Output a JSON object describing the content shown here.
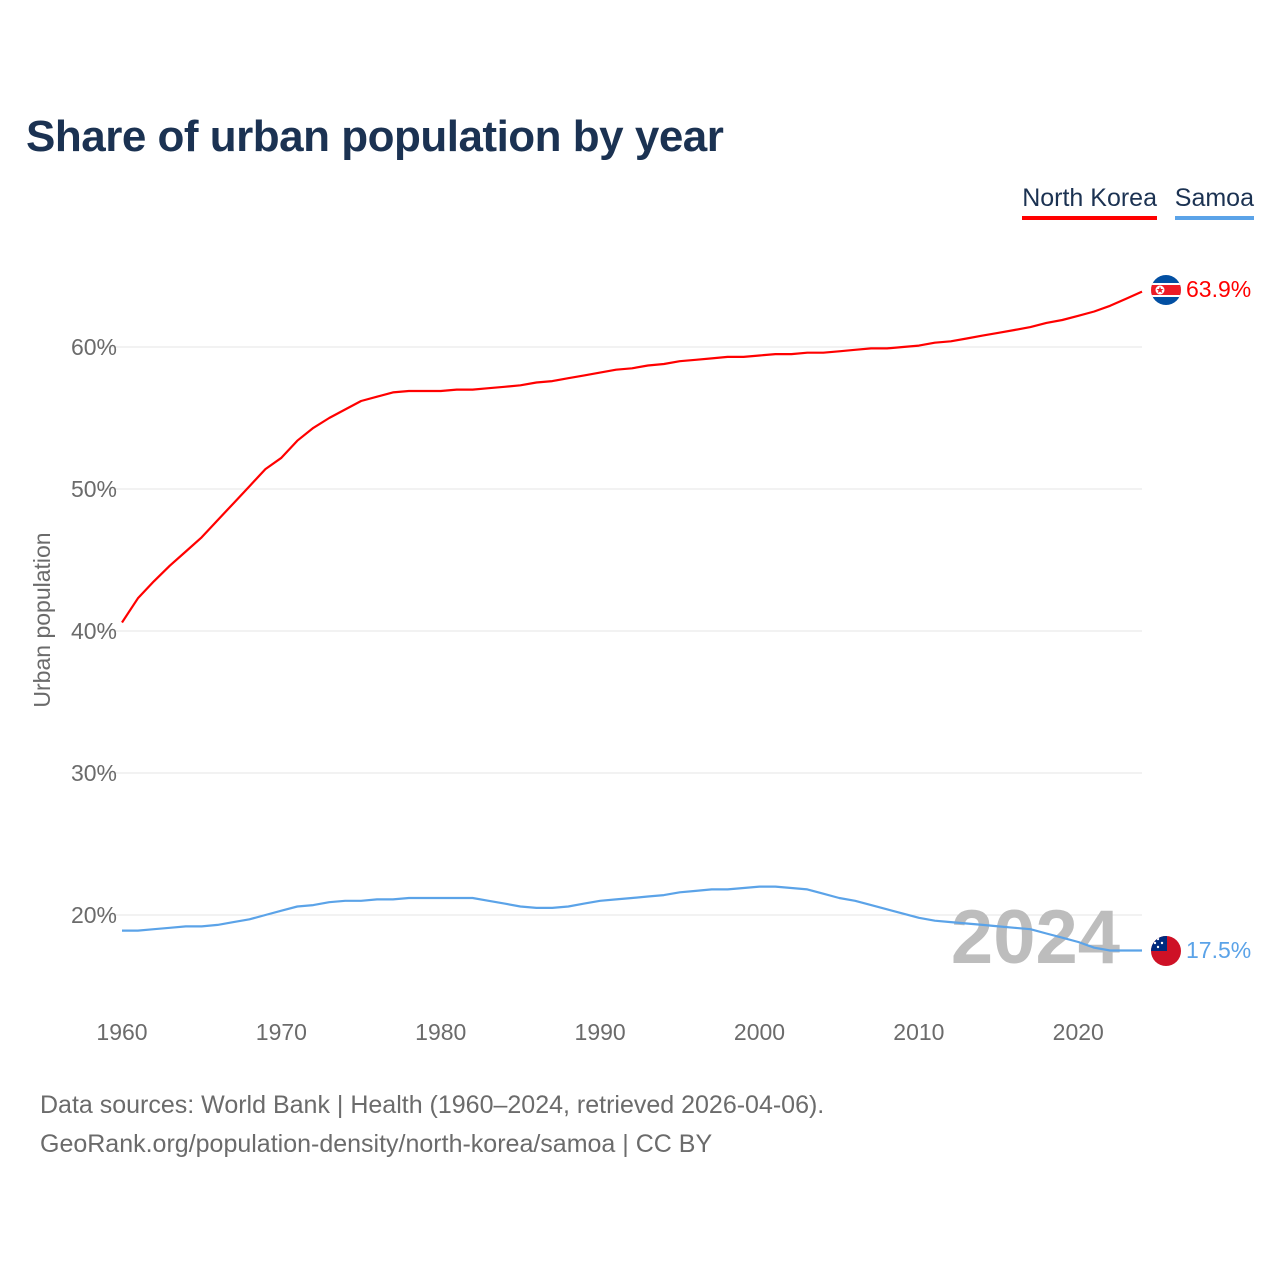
{
  "title": "Share of urban population by year",
  "footer": {
    "line1": "Data sources: World Bank | Health (1960–2024, retrieved 2026-04-06).",
    "line2": "GeoRank.org/population-density/north-korea/samoa | CC BY"
  },
  "chart_data": {
    "type": "line",
    "title": "Share of urban population by year",
    "xlabel": "",
    "ylabel": "Urban population",
    "year_watermark": "2024",
    "xlim": [
      1960,
      2024
    ],
    "ylim": [
      14,
      67
    ],
    "x_ticks": [
      1960,
      1970,
      1980,
      1990,
      2000,
      2010,
      2020
    ],
    "x_tick_labels": [
      "1960",
      "1970",
      "1980",
      "1990",
      "2000",
      "2010",
      "2020"
    ],
    "y_ticks": [
      20,
      30,
      40,
      50,
      60
    ],
    "y_tick_labels": [
      "20%",
      "30%",
      "40%",
      "50%",
      "60%"
    ],
    "grid": true,
    "legend_position": "top-right",
    "x": [
      1960,
      1961,
      1962,
      1963,
      1964,
      1965,
      1966,
      1967,
      1968,
      1969,
      1970,
      1971,
      1972,
      1973,
      1974,
      1975,
      1976,
      1977,
      1978,
      1979,
      1980,
      1981,
      1982,
      1983,
      1984,
      1985,
      1986,
      1987,
      1988,
      1989,
      1990,
      1991,
      1992,
      1993,
      1994,
      1995,
      1996,
      1997,
      1998,
      1999,
      2000,
      2001,
      2002,
      2003,
      2004,
      2005,
      2006,
      2007,
      2008,
      2009,
      2010,
      2011,
      2012,
      2013,
      2014,
      2015,
      2016,
      2017,
      2018,
      2019,
      2020,
      2021,
      2022,
      2023,
      2024
    ],
    "series": [
      {
        "name": "North Korea",
        "color": "#ff0000",
        "end_label": "63.9%",
        "values": [
          40.6,
          42.3,
          43.5,
          44.6,
          45.6,
          46.6,
          47.8,
          49.0,
          50.2,
          51.4,
          52.2,
          53.4,
          54.3,
          55.0,
          55.6,
          56.2,
          56.5,
          56.8,
          56.9,
          56.9,
          56.9,
          57.0,
          57.0,
          57.1,
          57.2,
          57.3,
          57.5,
          57.6,
          57.8,
          58.0,
          58.2,
          58.4,
          58.5,
          58.7,
          58.8,
          59.0,
          59.1,
          59.2,
          59.3,
          59.3,
          59.4,
          59.5,
          59.5,
          59.6,
          59.6,
          59.7,
          59.8,
          59.9,
          59.9,
          60.0,
          60.1,
          60.3,
          60.4,
          60.6,
          60.8,
          61.0,
          61.2,
          61.4,
          61.7,
          61.9,
          62.2,
          62.5,
          62.9,
          63.4,
          63.9
        ]
      },
      {
        "name": "Samoa",
        "color": "#5ba3e8",
        "end_label": "17.5%",
        "values": [
          18.9,
          18.9,
          19.0,
          19.1,
          19.2,
          19.2,
          19.3,
          19.5,
          19.7,
          20.0,
          20.3,
          20.6,
          20.7,
          20.9,
          21.0,
          21.0,
          21.1,
          21.1,
          21.2,
          21.2,
          21.2,
          21.2,
          21.2,
          21.0,
          20.8,
          20.6,
          20.5,
          20.5,
          20.6,
          20.8,
          21.0,
          21.1,
          21.2,
          21.3,
          21.4,
          21.6,
          21.7,
          21.8,
          21.8,
          21.9,
          22.0,
          22.0,
          21.9,
          21.8,
          21.5,
          21.2,
          21.0,
          20.7,
          20.4,
          20.1,
          19.8,
          19.6,
          19.5,
          19.4,
          19.3,
          19.2,
          19.1,
          19.0,
          18.7,
          18.4,
          18.1,
          17.7,
          17.5,
          17.5,
          17.5
        ]
      }
    ]
  }
}
